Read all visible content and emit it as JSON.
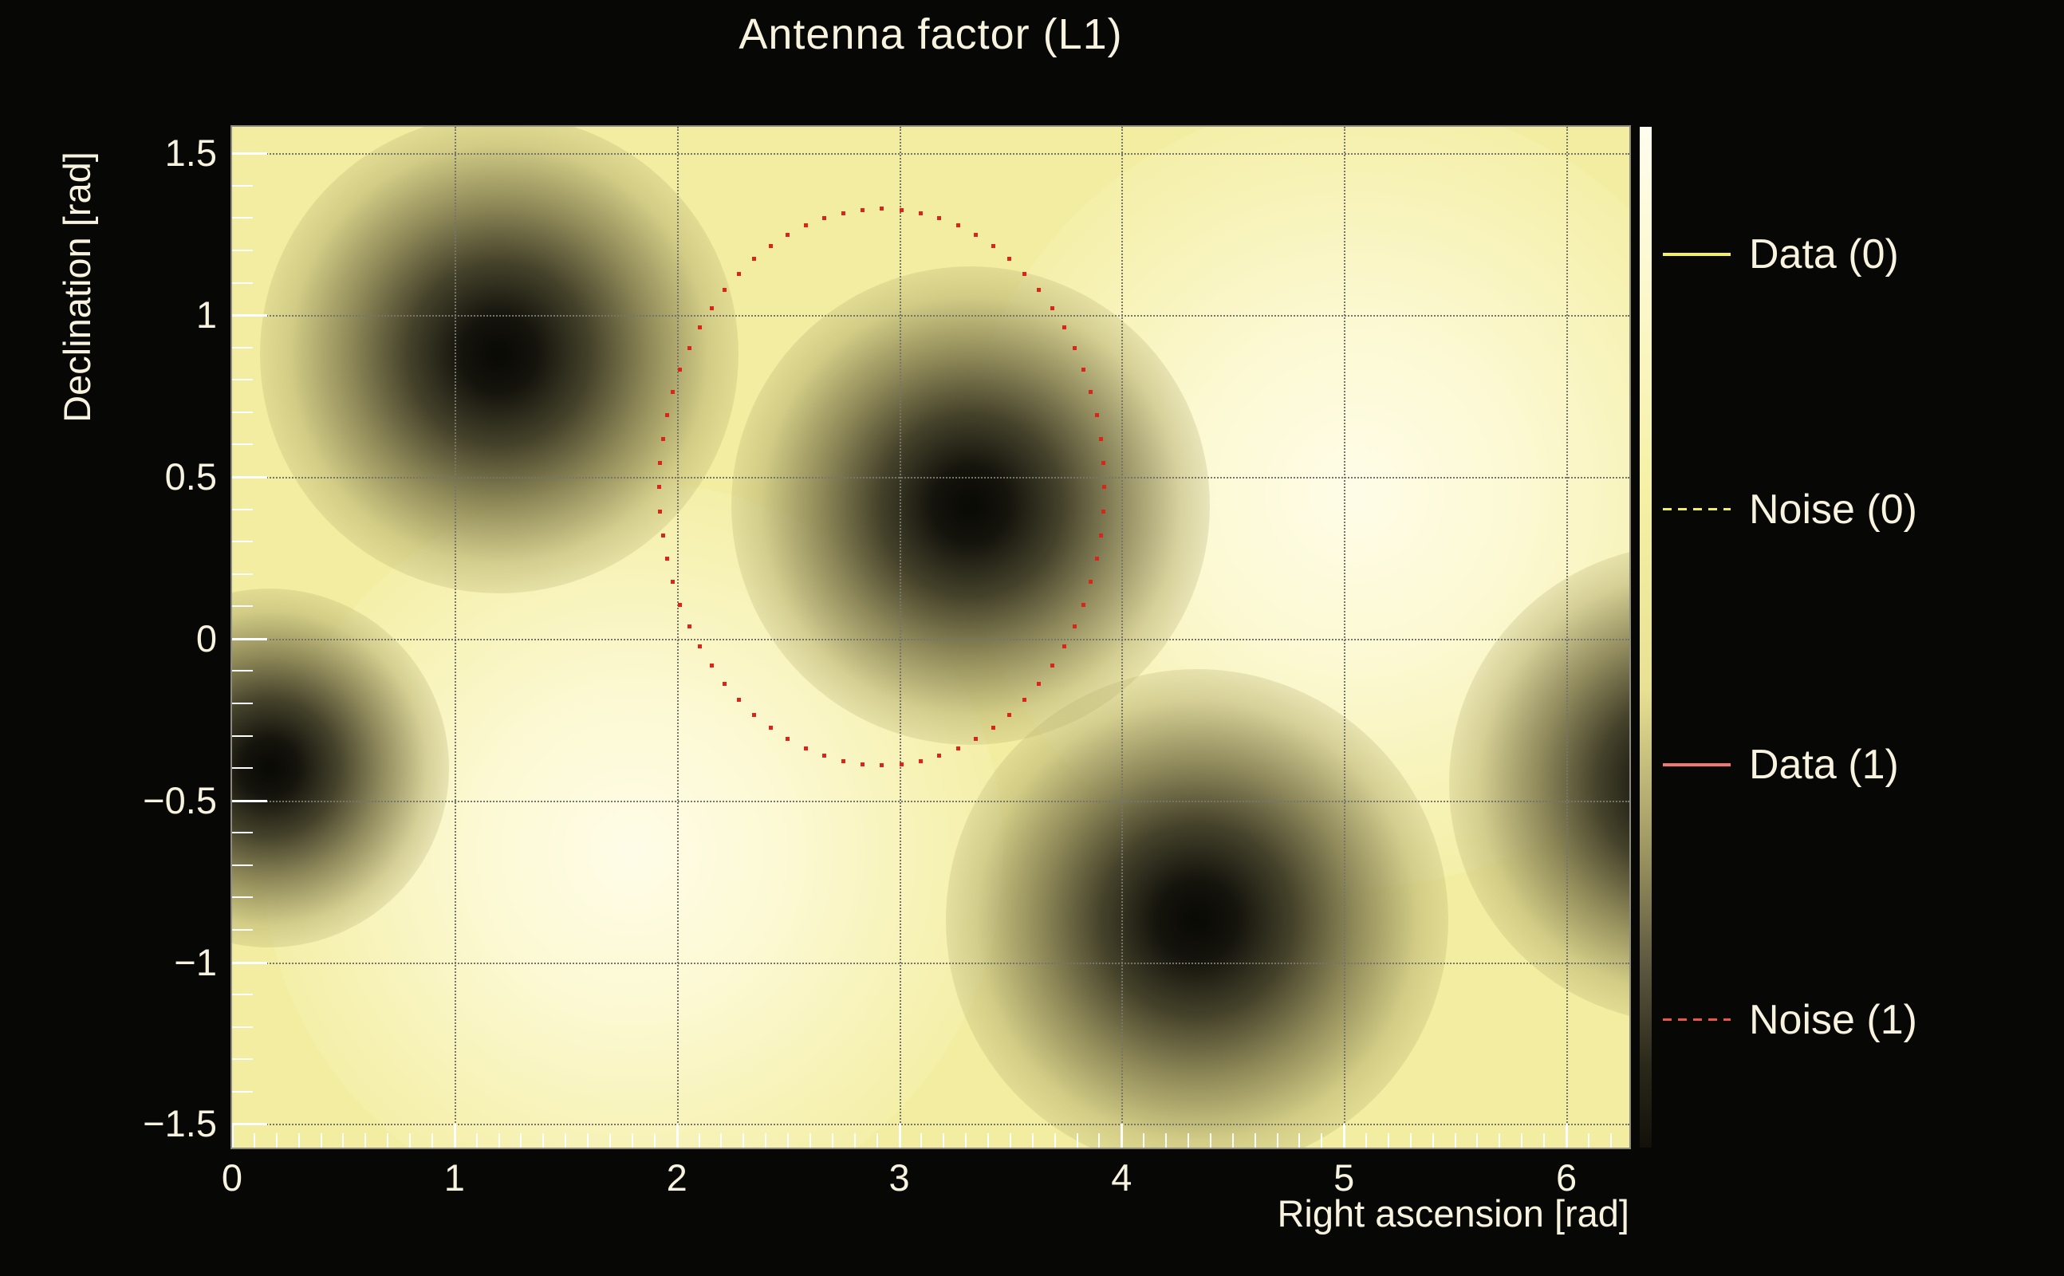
{
  "title": "Antenna factor (L1)",
  "colors": {
    "background": "#070706",
    "text": "#f8f3de",
    "plot_base": "#f2eda0",
    "grid": "#75756a",
    "tick": "#ffffff",
    "noise_dot": "#d9251a"
  },
  "chart_data": {
    "type": "heatmap",
    "title": "Antenna factor (L1)",
    "xlabel": "Right ascension [rad]",
    "ylabel": "Declination [rad]",
    "xlim": [
      0,
      6.2832
    ],
    "ylim": [
      -1.573,
      1.582
    ],
    "grid": "dotted",
    "xticks": [
      {
        "v": 0,
        "label": "0"
      },
      {
        "v": 1,
        "label": "1"
      },
      {
        "v": 2,
        "label": "2"
      },
      {
        "v": 3,
        "label": "3"
      },
      {
        "v": 4,
        "label": "4"
      },
      {
        "v": 5,
        "label": "5"
      },
      {
        "v": 6,
        "label": "6"
      }
    ],
    "yticks": [
      {
        "v": 1.5,
        "label": "1.5"
      },
      {
        "v": 1.0,
        "label": "1"
      },
      {
        "v": 0.5,
        "label": "0.5"
      },
      {
        "v": 0.0,
        "label": "0"
      },
      {
        "v": -0.5,
        "label": "−0.5"
      },
      {
        "v": -1.0,
        "label": "−1"
      },
      {
        "v": -1.5,
        "label": "−1.5"
      }
    ],
    "minor_tick_step": 0.1,
    "antenna_minima": [
      {
        "x": 1.2,
        "y": 0.88,
        "spread": 1.0
      },
      {
        "x": 3.32,
        "y": 0.41,
        "spread": 1.0
      },
      {
        "x": 4.34,
        "y": -0.87,
        "spread": 1.05
      },
      {
        "x": 0.17,
        "y": -0.4,
        "spread": 0.75
      },
      {
        "x": 6.55,
        "y": -0.45,
        "spread": 1.0
      }
    ],
    "antenna_maxima": [
      {
        "x": 1.8,
        "y": -0.66,
        "spread": 1.55
      },
      {
        "x": 5.05,
        "y": 0.45,
        "spread": 1.65
      }
    ],
    "noise_ellipse": {
      "cx": 2.92,
      "cy": 0.47,
      "rx": 1.0,
      "ry": 0.86,
      "points": 72,
      "color": "#d9251a"
    },
    "colorbar_stops": [
      {
        "pos": 0,
        "color": "#fffdee"
      },
      {
        "pos": 15,
        "color": "#fcf8cf"
      },
      {
        "pos": 35,
        "color": "#f6f1a6"
      },
      {
        "pos": 55,
        "color": "#e8e193"
      },
      {
        "pos": 70,
        "color": "#a29a64"
      },
      {
        "pos": 82,
        "color": "#5d5840"
      },
      {
        "pos": 92,
        "color": "#2a2819"
      },
      {
        "pos": 100,
        "color": "#121109"
      }
    ],
    "legend": [
      {
        "label": "Data (0)",
        "color": "#f3ef5f",
        "style": "solid"
      },
      {
        "label": "Noise (0)",
        "color": "#f0ec5a",
        "style": "dashed"
      },
      {
        "label": "Data (1)",
        "color": "#f1786e",
        "style": "solid"
      },
      {
        "label": "Noise (1)",
        "color": "#ee5546",
        "style": "dashed"
      }
    ]
  }
}
